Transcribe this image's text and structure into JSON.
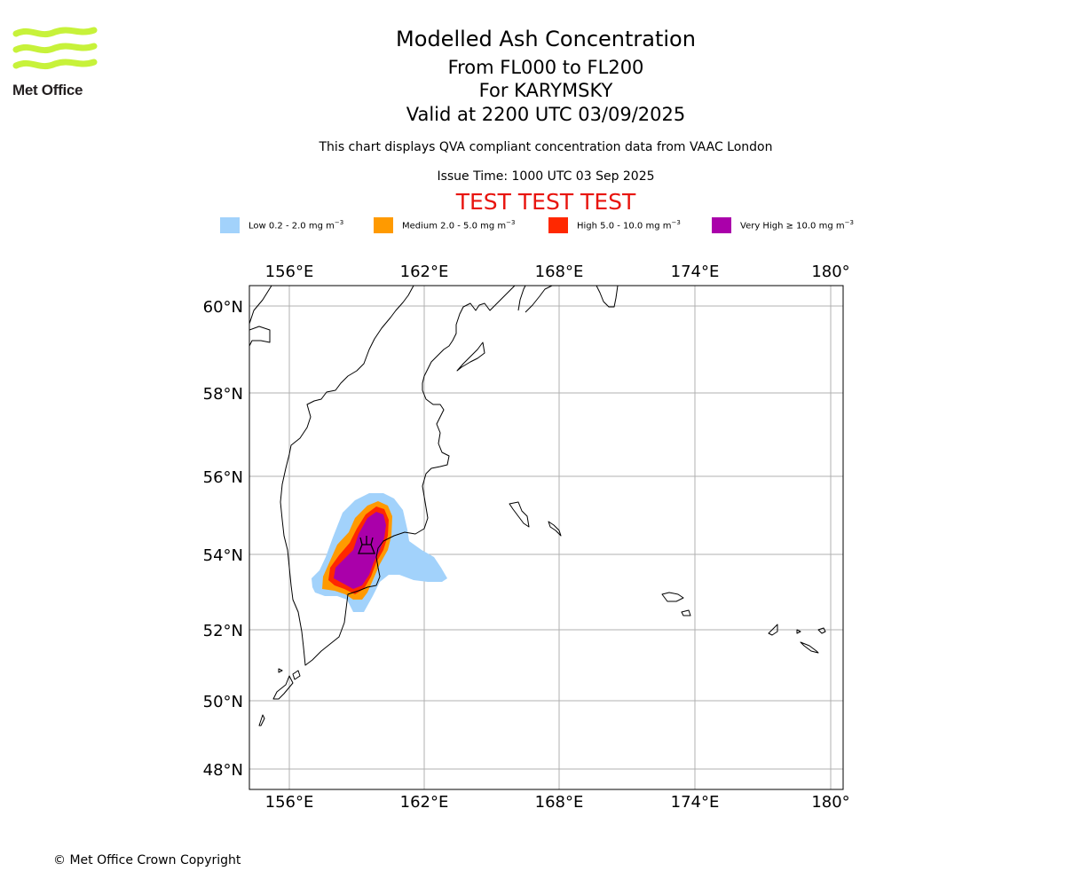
{
  "logo": {
    "name": "Met Office"
  },
  "header": {
    "title": "Modelled Ash Concentration",
    "levels": "From FL000 to FL200",
    "volcano": "For KARYMSKY",
    "valid": "Valid at 2200 UTC 03/09/2025",
    "note": "This chart displays QVA compliant concentration data from VAAC London",
    "issue": "Issue Time: 1000 UTC 03 Sep 2025",
    "test_banner": "TEST TEST TEST"
  },
  "legend": [
    {
      "label": "Low 0.2 - 2.0 mg m",
      "unit_exp": "−3",
      "color": "#a2d2fb"
    },
    {
      "label": "Medium 2.0 - 5.0 mg m",
      "unit_exp": "−3",
      "color": "#ff9a00"
    },
    {
      "label": "High 5.0 - 10.0 mg m",
      "unit_exp": "−3",
      "color": "#ff2800"
    },
    {
      "label": "Very High ≥ 10.0 mg m",
      "unit_exp": "−3",
      "color": "#aa00aa"
    }
  ],
  "map": {
    "lon_range": [
      154.8,
      180.3
    ],
    "lat_range": [
      47.5,
      60.5
    ],
    "lon_ticks": [
      "156°E",
      "162°E",
      "168°E",
      "174°E",
      "180°"
    ],
    "lat_ticks": [
      "60°N",
      "58°N",
      "56°N",
      "54°N",
      "52°N",
      "50°N",
      "48°N"
    ],
    "volcano": {
      "name": "KARYMSKY",
      "lon": 159.45,
      "lat": 54.05
    }
  },
  "footer": {
    "copyright": "© Met Office Crown Copyright"
  }
}
